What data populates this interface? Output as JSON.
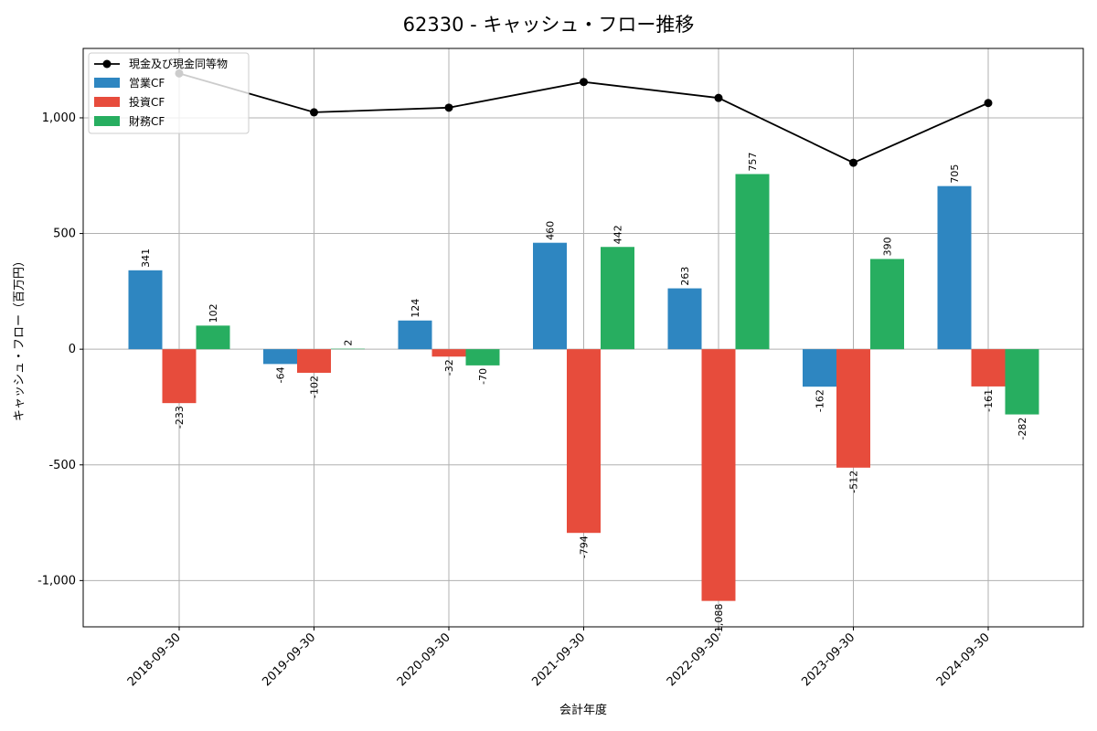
{
  "chart_data": {
    "type": "bar",
    "title": "62330 - キャッシュ・フロー推移",
    "xlabel": "会計年度",
    "ylabel": "キャッシュ・フロー（百万円）",
    "categories": [
      "2018-09-30",
      "2019-09-30",
      "2020-09-30",
      "2021-09-30",
      "2022-09-30",
      "2023-09-30",
      "2024-09-30"
    ],
    "ylim": [
      -1200,
      1300
    ],
    "yticks": [
      -1000,
      -500,
      0,
      500,
      1000
    ],
    "ytick_labels": [
      "-1,000",
      "-500",
      "0",
      "500",
      "1,000"
    ],
    "grid": true,
    "legend_position": "top-left",
    "series": [
      {
        "name": "営業CF",
        "kind": "bar",
        "color": "#2e86c1",
        "values": [
          341,
          -64,
          124,
          460,
          263,
          -162,
          705
        ],
        "labels": [
          "341",
          "-64",
          "124",
          "460",
          "263",
          "-162",
          "705"
        ]
      },
      {
        "name": "投資CF",
        "kind": "bar",
        "color": "#e74c3c",
        "values": [
          -233,
          -102,
          -32,
          -794,
          -1088,
          -512,
          -161
        ],
        "labels": [
          "-233",
          "-102",
          "-32",
          "-794",
          "-1,088",
          "-512",
          "-161"
        ]
      },
      {
        "name": "財務CF",
        "kind": "bar",
        "color": "#27ae60",
        "values": [
          102,
          2,
          -70,
          442,
          757,
          390,
          -282
        ],
        "labels": [
          "102",
          "2",
          "-70",
          "442",
          "757",
          "390",
          "-282"
        ]
      }
    ],
    "line": {
      "name": "現金及び現金同等物",
      "color": "#000000",
      "values": [
        1192,
        1024,
        1044,
        1155,
        1086,
        806,
        1064
      ]
    }
  }
}
